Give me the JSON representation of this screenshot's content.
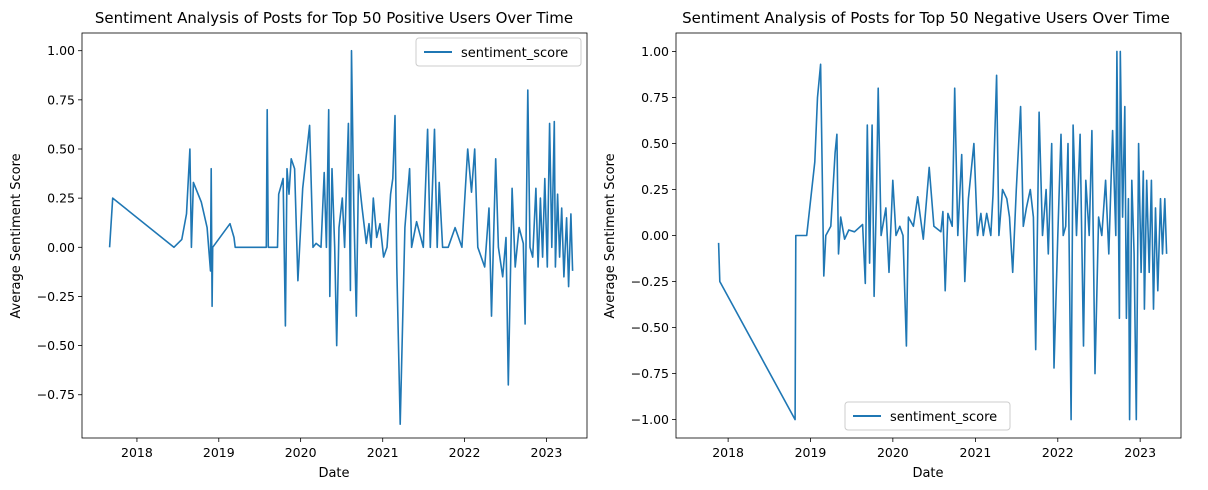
{
  "chart_data": [
    {
      "type": "line",
      "title": "Sentiment Analysis of Posts for Top 50 Positive Users Over Time",
      "xlabel": "Date",
      "ylabel": "Average Sentiment Score",
      "xlim": [
        "2017-05-01",
        "2023-07-01"
      ],
      "ylim": [
        -0.97,
        1.09
      ],
      "x_ticks": [
        "2018",
        "2019",
        "2020",
        "2021",
        "2022",
        "2023"
      ],
      "y_ticks": [
        1.0,
        0.75,
        0.5,
        0.25,
        0.0,
        -0.25,
        -0.5,
        -0.75
      ],
      "y_tick_labels": [
        "1.00",
        "0.75",
        "0.50",
        "0.25",
        "0.00",
        "−0.25",
        "−0.50",
        "−0.75"
      ],
      "legend": {
        "position": "top-right",
        "entries": [
          "sentiment_score"
        ]
      },
      "series": [
        {
          "name": "sentiment_score",
          "color": "#1f77b4",
          "points": [
            [
              "2017-09-01",
              0.0
            ],
            [
              "2017-09-15",
              0.25
            ],
            [
              "2018-06-15",
              0.0
            ],
            [
              "2018-07-20",
              0.04
            ],
            [
              "2018-08-10",
              0.17
            ],
            [
              "2018-08-25",
              0.5
            ],
            [
              "2018-09-01",
              0.0
            ],
            [
              "2018-09-10",
              0.33
            ],
            [
              "2018-10-15",
              0.23
            ],
            [
              "2018-11-10",
              0.1
            ],
            [
              "2018-11-25",
              -0.12
            ],
            [
              "2018-11-28",
              0.4
            ],
            [
              "2018-12-02",
              -0.3
            ],
            [
              "2018-12-05",
              0.0
            ],
            [
              "2019-02-20",
              0.12
            ],
            [
              "2019-03-10",
              0.05
            ],
            [
              "2019-03-15",
              0.0
            ],
            [
              "2019-08-01",
              0.0
            ],
            [
              "2019-08-05",
              0.7
            ],
            [
              "2019-08-10",
              0.0
            ],
            [
              "2019-09-20",
              0.0
            ],
            [
              "2019-09-25",
              0.27
            ],
            [
              "2019-10-15",
              0.35
            ],
            [
              "2019-10-25",
              -0.4
            ],
            [
              "2019-11-01",
              0.4
            ],
            [
              "2019-11-10",
              0.27
            ],
            [
              "2019-11-20",
              0.45
            ],
            [
              "2019-12-05",
              0.4
            ],
            [
              "2019-12-20",
              -0.17
            ],
            [
              "2020-01-10",
              0.3
            ],
            [
              "2020-02-10",
              0.62
            ],
            [
              "2020-02-25",
              0.0
            ],
            [
              "2020-03-10",
              0.02
            ],
            [
              "2020-04-01",
              0.0
            ],
            [
              "2020-04-15",
              0.38
            ],
            [
              "2020-04-25",
              0.0
            ],
            [
              "2020-05-05",
              0.7
            ],
            [
              "2020-05-10",
              -0.25
            ],
            [
              "2020-05-20",
              0.4
            ],
            [
              "2020-06-01",
              0.0
            ],
            [
              "2020-06-10",
              -0.5
            ],
            [
              "2020-06-20",
              0.1
            ],
            [
              "2020-07-05",
              0.25
            ],
            [
              "2020-07-15",
              0.0
            ],
            [
              "2020-08-01",
              0.63
            ],
            [
              "2020-08-10",
              -0.22
            ],
            [
              "2020-08-15",
              1.0
            ],
            [
              "2020-08-25",
              0.2
            ],
            [
              "2020-09-05",
              -0.35
            ],
            [
              "2020-09-15",
              0.37
            ],
            [
              "2020-10-01",
              0.2
            ],
            [
              "2020-10-20",
              0.02
            ],
            [
              "2020-11-01",
              0.12
            ],
            [
              "2020-11-10",
              0.0
            ],
            [
              "2020-11-20",
              0.25
            ],
            [
              "2020-12-05",
              0.05
            ],
            [
              "2020-12-20",
              0.12
            ],
            [
              "2021-01-05",
              -0.05
            ],
            [
              "2021-01-20",
              0.0
            ],
            [
              "2021-02-05",
              0.27
            ],
            [
              "2021-02-15",
              0.35
            ],
            [
              "2021-02-25",
              0.67
            ],
            [
              "2021-03-05",
              -0.1
            ],
            [
              "2021-03-20",
              -0.9
            ],
            [
              "2021-04-10",
              0.1
            ],
            [
              "2021-05-01",
              0.4
            ],
            [
              "2021-05-10",
              0.0
            ],
            [
              "2021-06-01",
              0.13
            ],
            [
              "2021-07-01",
              0.0
            ],
            [
              "2021-07-20",
              0.6
            ],
            [
              "2021-08-01",
              0.0
            ],
            [
              "2021-08-20",
              0.6
            ],
            [
              "2021-09-01",
              0.0
            ],
            [
              "2021-09-10",
              0.33
            ],
            [
              "2021-09-25",
              0.0
            ],
            [
              "2021-10-20",
              0.0
            ],
            [
              "2021-11-20",
              0.1
            ],
            [
              "2021-12-20",
              0.0
            ],
            [
              "2022-01-15",
              0.5
            ],
            [
              "2022-02-01",
              0.28
            ],
            [
              "2022-02-15",
              0.5
            ],
            [
              "2022-03-01",
              0.0
            ],
            [
              "2022-04-01",
              -0.1
            ],
            [
              "2022-04-20",
              0.2
            ],
            [
              "2022-05-01",
              -0.35
            ],
            [
              "2022-05-20",
              0.45
            ],
            [
              "2022-06-01",
              0.0
            ],
            [
              "2022-06-20",
              -0.15
            ],
            [
              "2022-07-05",
              0.05
            ],
            [
              "2022-07-15",
              -0.7
            ],
            [
              "2022-08-01",
              0.3
            ],
            [
              "2022-08-15",
              -0.1
            ],
            [
              "2022-09-01",
              0.1
            ],
            [
              "2022-09-20",
              0.02
            ],
            [
              "2022-09-28",
              -0.39
            ],
            [
              "2022-10-10",
              0.8
            ],
            [
              "2022-10-20",
              0.0
            ],
            [
              "2022-11-01",
              -0.05
            ],
            [
              "2022-11-15",
              0.3
            ],
            [
              "2022-11-25",
              -0.1
            ],
            [
              "2022-12-05",
              0.25
            ],
            [
              "2022-12-15",
              -0.05
            ],
            [
              "2022-12-25",
              0.35
            ],
            [
              "2023-01-05",
              -0.1
            ],
            [
              "2023-01-15",
              0.63
            ],
            [
              "2023-01-25",
              0.0
            ],
            [
              "2023-02-05",
              0.64
            ],
            [
              "2023-02-10",
              -0.1
            ],
            [
              "2023-02-20",
              0.27
            ],
            [
              "2023-03-01",
              -0.05
            ],
            [
              "2023-03-10",
              0.2
            ],
            [
              "2023-03-20",
              -0.15
            ],
            [
              "2023-04-01",
              0.15
            ],
            [
              "2023-04-10",
              -0.2
            ],
            [
              "2023-04-20",
              0.17
            ],
            [
              "2023-04-28",
              -0.12
            ]
          ]
        }
      ]
    },
    {
      "type": "line",
      "title": "Sentiment Analysis of Posts for Top 50 Negative Users Over Time",
      "xlabel": "Date",
      "ylabel": "Average Sentiment Score",
      "xlim": [
        "2017-05-15",
        "2023-07-01"
      ],
      "ylim": [
        -1.1,
        1.1
      ],
      "x_ticks": [
        "2018",
        "2019",
        "2020",
        "2021",
        "2022",
        "2023"
      ],
      "y_ticks": [
        1.0,
        0.75,
        0.5,
        0.25,
        0.0,
        -0.25,
        -0.5,
        -0.75,
        -1.0
      ],
      "y_tick_labels": [
        "1.00",
        "0.75",
        "0.50",
        "0.25",
        "0.00",
        "−0.25",
        "−0.50",
        "−0.75",
        "−1.00"
      ],
      "legend": {
        "position": "bottom-center",
        "entries": [
          "sentiment_score"
        ]
      },
      "series": [
        {
          "name": "sentiment_score",
          "color": "#1f77b4",
          "points": [
            [
              "2017-11-20",
              -0.04
            ],
            [
              "2017-11-25",
              -0.25
            ],
            [
              "2018-10-25",
              -1.0
            ],
            [
              "2018-10-28",
              0.0
            ],
            [
              "2018-12-15",
              0.0
            ],
            [
              "2019-01-20",
              0.4
            ],
            [
              "2019-02-01",
              0.75
            ],
            [
              "2019-02-15",
              0.93
            ],
            [
              "2019-03-01",
              -0.22
            ],
            [
              "2019-03-10",
              0.0
            ],
            [
              "2019-04-01",
              0.05
            ],
            [
              "2019-04-20",
              0.45
            ],
            [
              "2019-04-28",
              0.55
            ],
            [
              "2019-05-05",
              -0.1
            ],
            [
              "2019-05-15",
              0.1
            ],
            [
              "2019-06-01",
              -0.02
            ],
            [
              "2019-06-20",
              0.03
            ],
            [
              "2019-07-15",
              0.02
            ],
            [
              "2019-08-20",
              0.06
            ],
            [
              "2019-09-01",
              -0.26
            ],
            [
              "2019-09-10",
              0.6
            ],
            [
              "2019-09-20",
              -0.15
            ],
            [
              "2019-10-01",
              0.6
            ],
            [
              "2019-10-10",
              -0.33
            ],
            [
              "2019-10-20",
              0.2
            ],
            [
              "2019-10-28",
              0.8
            ],
            [
              "2019-11-10",
              0.0
            ],
            [
              "2019-12-01",
              0.15
            ],
            [
              "2019-12-15",
              -0.2
            ],
            [
              "2020-01-01",
              0.3
            ],
            [
              "2020-01-15",
              0.0
            ],
            [
              "2020-02-01",
              0.05
            ],
            [
              "2020-02-15",
              0.0
            ],
            [
              "2020-03-01",
              -0.6
            ],
            [
              "2020-03-10",
              0.1
            ],
            [
              "2020-04-01",
              0.05
            ],
            [
              "2020-04-20",
              0.21
            ],
            [
              "2020-05-15",
              -0.02
            ],
            [
              "2020-06-10",
              0.37
            ],
            [
              "2020-07-01",
              0.05
            ],
            [
              "2020-08-01",
              0.02
            ],
            [
              "2020-08-10",
              0.13
            ],
            [
              "2020-08-20",
              -0.3
            ],
            [
              "2020-09-01",
              0.12
            ],
            [
              "2020-09-20",
              0.05
            ],
            [
              "2020-10-01",
              0.8
            ],
            [
              "2020-10-15",
              0.0
            ],
            [
              "2020-11-01",
              0.44
            ],
            [
              "2020-11-15",
              -0.25
            ],
            [
              "2020-12-01",
              0.2
            ],
            [
              "2020-12-25",
              0.5
            ],
            [
              "2021-01-10",
              0.0
            ],
            [
              "2021-01-25",
              0.12
            ],
            [
              "2021-02-05",
              0.0
            ],
            [
              "2021-02-20",
              0.12
            ],
            [
              "2021-03-10",
              0.0
            ],
            [
              "2021-03-20",
              0.22
            ],
            [
              "2021-04-05",
              0.87
            ],
            [
              "2021-04-15",
              0.0
            ],
            [
              "2021-05-01",
              0.25
            ],
            [
              "2021-05-20",
              0.2
            ],
            [
              "2021-06-01",
              0.1
            ],
            [
              "2021-06-15",
              -0.2
            ],
            [
              "2021-07-01",
              0.25
            ],
            [
              "2021-07-20",
              0.7
            ],
            [
              "2021-08-01",
              0.05
            ],
            [
              "2021-08-15",
              0.15
            ],
            [
              "2021-09-01",
              0.25
            ],
            [
              "2021-09-15",
              0.1
            ],
            [
              "2021-09-25",
              -0.62
            ],
            [
              "2021-10-10",
              0.67
            ],
            [
              "2021-10-25",
              0.0
            ],
            [
              "2021-11-10",
              0.25
            ],
            [
              "2021-11-20",
              -0.1
            ],
            [
              "2021-12-05",
              0.5
            ],
            [
              "2021-12-15",
              -0.72
            ],
            [
              "2022-01-01",
              0.0
            ],
            [
              "2022-01-15",
              0.55
            ],
            [
              "2022-01-25",
              0.0
            ],
            [
              "2022-02-05",
              0.05
            ],
            [
              "2022-02-15",
              0.5
            ],
            [
              "2022-03-01",
              -1.0
            ],
            [
              "2022-03-10",
              0.6
            ],
            [
              "2022-03-25",
              0.0
            ],
            [
              "2022-04-10",
              0.55
            ],
            [
              "2022-04-25",
              -0.6
            ],
            [
              "2022-05-05",
              0.3
            ],
            [
              "2022-05-20",
              0.0
            ],
            [
              "2022-06-01",
              0.57
            ],
            [
              "2022-06-15",
              -0.75
            ],
            [
              "2022-07-01",
              0.1
            ],
            [
              "2022-07-15",
              0.0
            ],
            [
              "2022-08-01",
              0.3
            ],
            [
              "2022-08-15",
              -0.1
            ],
            [
              "2022-09-01",
              0.57
            ],
            [
              "2022-09-15",
              0.0
            ],
            [
              "2022-09-20",
              1.0
            ],
            [
              "2022-10-01",
              -0.45
            ],
            [
              "2022-10-05",
              1.0
            ],
            [
              "2022-10-15",
              0.1
            ],
            [
              "2022-10-25",
              0.7
            ],
            [
              "2022-11-01",
              -0.45
            ],
            [
              "2022-11-10",
              0.2
            ],
            [
              "2022-11-15",
              -1.0
            ],
            [
              "2022-11-25",
              0.3
            ],
            [
              "2022-12-05",
              -0.1
            ],
            [
              "2022-12-15",
              -1.0
            ],
            [
              "2022-12-25",
              0.5
            ],
            [
              "2023-01-05",
              -0.2
            ],
            [
              "2023-01-15",
              0.35
            ],
            [
              "2023-01-20",
              -0.4
            ],
            [
              "2023-01-30",
              0.3
            ],
            [
              "2023-02-10",
              -0.2
            ],
            [
              "2023-02-20",
              0.3
            ],
            [
              "2023-03-01",
              -0.4
            ],
            [
              "2023-03-10",
              0.15
            ],
            [
              "2023-03-20",
              -0.3
            ],
            [
              "2023-04-01",
              0.2
            ],
            [
              "2023-04-10",
              -0.1
            ],
            [
              "2023-04-20",
              0.2
            ],
            [
              "2023-04-28",
              -0.1
            ]
          ]
        }
      ]
    }
  ]
}
